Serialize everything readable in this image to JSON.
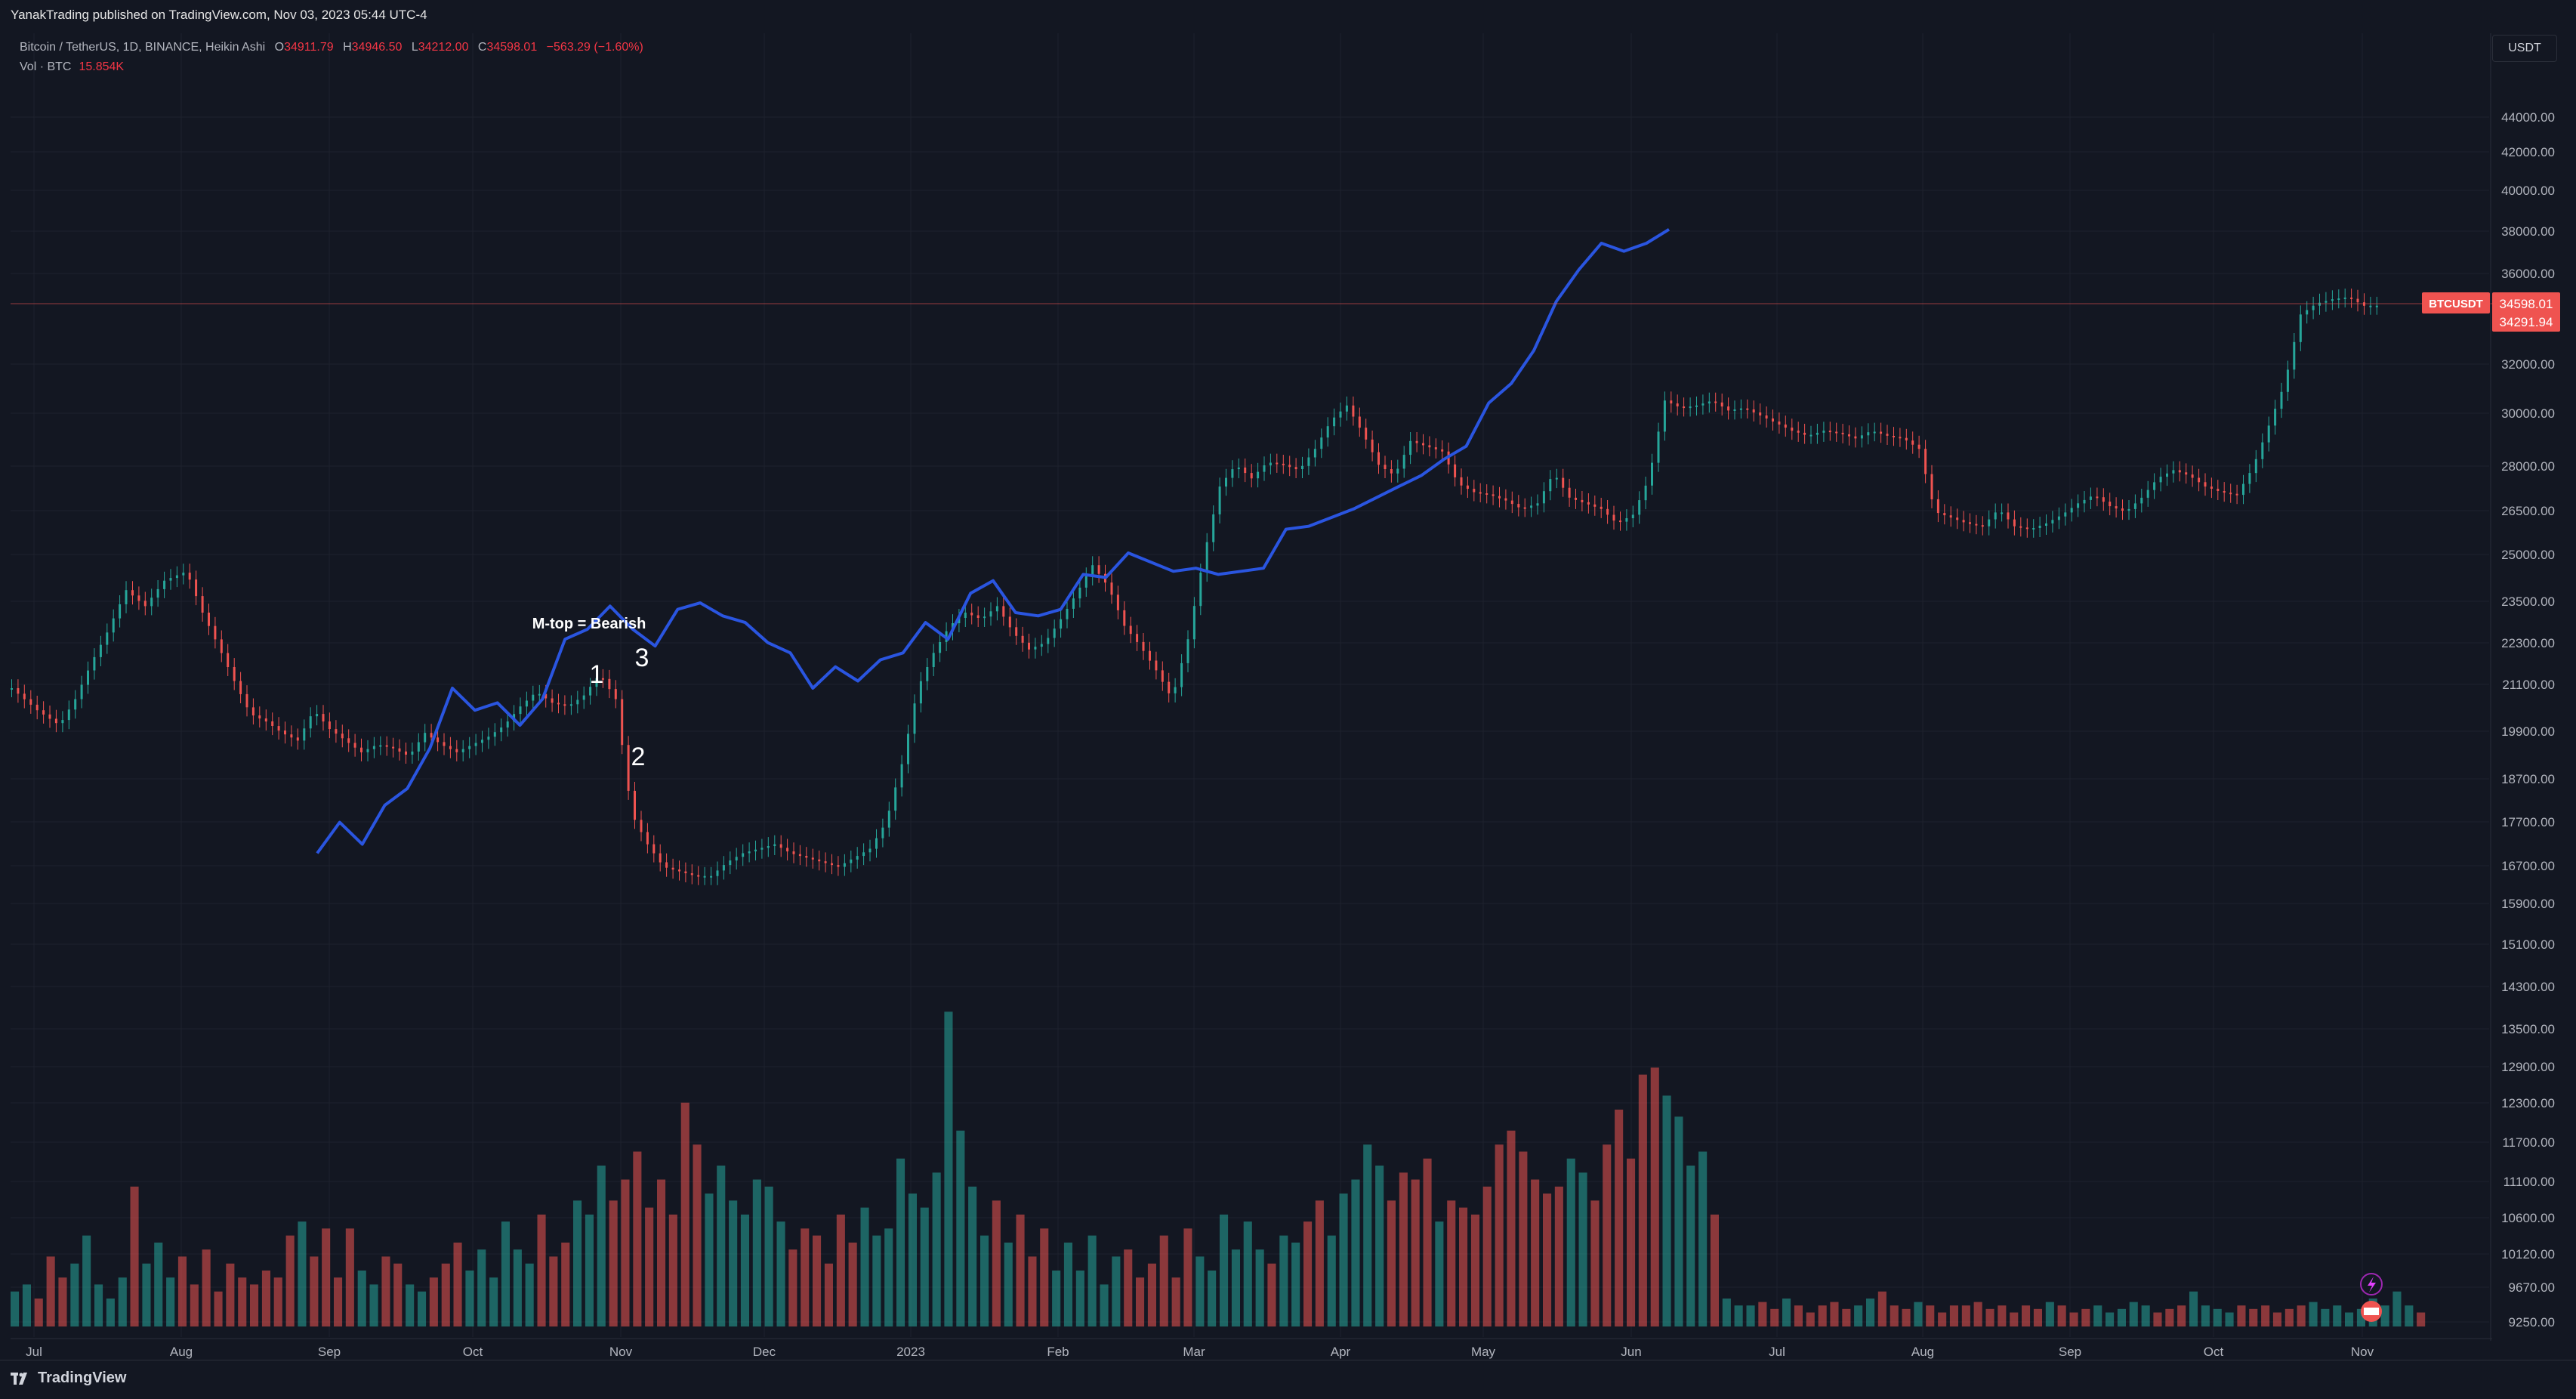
{
  "header": {
    "publisher": "YanakTrading published on TradingView.com, Nov 03, 2023 05:44 UTC-4"
  },
  "legend": {
    "symbol": "Bitcoin / TetherUS, 1D, BINANCE, Heikin Ashi",
    "o_label": "O",
    "o_value": "34911.79",
    "h_label": "H",
    "h_value": "34946.50",
    "l_label": "L",
    "l_value": "34212.00",
    "c_label": "C",
    "c_value": "34598.01",
    "change": "−563.29 (−1.60%)",
    "volume_label": "Vol · BTC",
    "volume_value": "15.854K"
  },
  "currency_button": "USDT",
  "footer": {
    "brand": "TradingView"
  },
  "colors": {
    "up": "#26a69a",
    "down": "#ef5350",
    "overlay": "#2a55e0",
    "background": "#131722",
    "price_line": "#ef5350"
  },
  "chart_data": {
    "type": "candlestick",
    "style": "Heikin Ashi",
    "symbol": "BTCUSDT",
    "timeframe": "1D",
    "x_ticks": [
      "Jul",
      "Aug",
      "Sep",
      "Oct",
      "Nov",
      "Dec",
      "2023",
      "Feb",
      "Mar",
      "Apr",
      "May",
      "Jun",
      "Jul",
      "Aug",
      "Sep",
      "Oct",
      "Nov"
    ],
    "y_ticks": [
      44000,
      42000,
      40000,
      38000,
      36000,
      32000,
      30000,
      28000,
      26500,
      25000,
      23500,
      22300,
      21100,
      19900,
      18700,
      17700,
      16700,
      15900,
      15100,
      14300,
      13500,
      12900,
      12300,
      11700,
      11100,
      10600,
      10120,
      9670,
      9250
    ],
    "y_tick_labels": [
      "44000.00",
      "42000.00",
      "40000.00",
      "38000.00",
      "36000.00",
      "32000.00",
      "30000.00",
      "28000.00",
      "26500.00",
      "25000.00",
      "23500.00",
      "22300.00",
      "21100.00",
      "19900.00",
      "18700.00",
      "17700.00",
      "16700.00",
      "15900.00",
      "15100.00",
      "14300.00",
      "13500.00",
      "12900.00",
      "12300.00",
      "11700.00",
      "11100.00",
      "10600.00",
      "10120.00",
      "9670.00",
      "9250.00"
    ],
    "y_scale": "log",
    "price_label": {
      "name": "BTCUSDT",
      "price": "34598.01",
      "secondary": "34291.94"
    },
    "series": [
      {
        "type": "candles",
        "close_path": [
          [
            0,
            20800
          ],
          [
            8,
            20200
          ],
          [
            15,
            19800
          ],
          [
            20,
            20500
          ],
          [
            25,
            21500
          ],
          [
            30,
            22400
          ],
          [
            36,
            23700
          ],
          [
            42,
            23200
          ],
          [
            48,
            24000
          ],
          [
            55,
            24300
          ],
          [
            60,
            23000
          ],
          [
            65,
            22000
          ],
          [
            70,
            21000
          ],
          [
            75,
            20100
          ],
          [
            80,
            19900
          ],
          [
            85,
            19600
          ],
          [
            90,
            19400
          ],
          [
            95,
            20200
          ],
          [
            100,
            19700
          ],
          [
            105,
            19400
          ],
          [
            110,
            19100
          ],
          [
            115,
            19300
          ],
          [
            120,
            19200
          ],
          [
            125,
            19000
          ],
          [
            130,
            19600
          ],
          [
            135,
            19300
          ],
          [
            140,
            19100
          ],
          [
            145,
            19300
          ],
          [
            150,
            19500
          ],
          [
            155,
            19800
          ],
          [
            160,
            20300
          ],
          [
            165,
            20700
          ],
          [
            170,
            20400
          ],
          [
            175,
            20300
          ],
          [
            180,
            20600
          ],
          [
            185,
            21200
          ],
          [
            190,
            20500
          ],
          [
            195,
            17600
          ],
          [
            200,
            16900
          ],
          [
            205,
            16400
          ],
          [
            210,
            16300
          ],
          [
            215,
            16200
          ],
          [
            220,
            16200
          ],
          [
            225,
            16500
          ],
          [
            230,
            16700
          ],
          [
            235,
            16800
          ],
          [
            240,
            16900
          ],
          [
            245,
            16700
          ],
          [
            250,
            16600
          ],
          [
            255,
            16500
          ],
          [
            260,
            16400
          ],
          [
            265,
            16600
          ],
          [
            270,
            16800
          ],
          [
            275,
            17400
          ],
          [
            280,
            18800
          ],
          [
            285,
            20800
          ],
          [
            290,
            21800
          ],
          [
            295,
            22600
          ],
          [
            300,
            23000
          ],
          [
            305,
            22800
          ],
          [
            310,
            23200
          ],
          [
            315,
            22400
          ],
          [
            320,
            21900
          ],
          [
            325,
            22100
          ],
          [
            330,
            22800
          ],
          [
            335,
            23600
          ],
          [
            340,
            24500
          ],
          [
            345,
            23800
          ],
          [
            350,
            22600
          ],
          [
            355,
            22000
          ],
          [
            360,
            21300
          ],
          [
            365,
            20500
          ],
          [
            370,
            22200
          ],
          [
            375,
            24800
          ],
          [
            380,
            27200
          ],
          [
            385,
            28000
          ],
          [
            390,
            27500
          ],
          [
            395,
            28100
          ],
          [
            400,
            28000
          ],
          [
            405,
            27800
          ],
          [
            410,
            28600
          ],
          [
            415,
            29700
          ],
          [
            420,
            30300
          ],
          [
            425,
            29200
          ],
          [
            430,
            28000
          ],
          [
            435,
            27600
          ],
          [
            440,
            28900
          ],
          [
            445,
            28700
          ],
          [
            450,
            28500
          ],
          [
            455,
            27300
          ],
          [
            460,
            27000
          ],
          [
            465,
            26900
          ],
          [
            470,
            26700
          ],
          [
            475,
            26400
          ],
          [
            480,
            26600
          ],
          [
            485,
            27700
          ],
          [
            490,
            26800
          ],
          [
            495,
            26600
          ],
          [
            500,
            26400
          ],
          [
            505,
            25900
          ],
          [
            510,
            26200
          ],
          [
            515,
            27500
          ],
          [
            520,
            30500
          ],
          [
            525,
            30200
          ],
          [
            530,
            30300
          ],
          [
            535,
            30500
          ],
          [
            540,
            30100
          ],
          [
            545,
            30200
          ],
          [
            550,
            29900
          ],
          [
            555,
            29600
          ],
          [
            560,
            29300
          ],
          [
            565,
            29100
          ],
          [
            570,
            29300
          ],
          [
            575,
            29200
          ],
          [
            580,
            29000
          ],
          [
            585,
            29300
          ],
          [
            590,
            29100
          ],
          [
            595,
            29000
          ],
          [
            600,
            28600
          ],
          [
            605,
            26300
          ],
          [
            610,
            26100
          ],
          [
            615,
            25900
          ],
          [
            620,
            25800
          ],
          [
            625,
            26400
          ],
          [
            630,
            25800
          ],
          [
            635,
            25700
          ],
          [
            640,
            25900
          ],
          [
            645,
            26200
          ],
          [
            650,
            26600
          ],
          [
            655,
            26900
          ],
          [
            660,
            26500
          ],
          [
            665,
            26300
          ],
          [
            670,
            26800
          ],
          [
            675,
            27500
          ],
          [
            680,
            27800
          ],
          [
            685,
            27600
          ],
          [
            690,
            27200
          ],
          [
            695,
            27000
          ],
          [
            700,
            26900
          ],
          [
            705,
            27900
          ],
          [
            710,
            29500
          ],
          [
            715,
            31200
          ],
          [
            720,
            34200
          ],
          [
            725,
            34700
          ],
          [
            730,
            34900
          ],
          [
            735,
            35000
          ],
          [
            740,
            34600
          ]
        ]
      },
      {
        "type": "overlay_line",
        "name": "",
        "path": [
          [
            0,
            16700
          ],
          [
            5,
            17400
          ],
          [
            10,
            16900
          ],
          [
            15,
            17800
          ],
          [
            20,
            18200
          ],
          [
            25,
            19200
          ],
          [
            30,
            20800
          ],
          [
            35,
            20200
          ],
          [
            40,
            20400
          ],
          [
            45,
            19800
          ],
          [
            50,
            20500
          ],
          [
            55,
            22200
          ],
          [
            60,
            22500
          ],
          [
            65,
            23200
          ],
          [
            70,
            22500
          ],
          [
            75,
            22000
          ],
          [
            80,
            23100
          ],
          [
            85,
            23300
          ],
          [
            90,
            22900
          ],
          [
            95,
            22700
          ],
          [
            100,
            22100
          ],
          [
            105,
            21800
          ],
          [
            110,
            20800
          ],
          [
            115,
            21400
          ],
          [
            120,
            21000
          ],
          [
            125,
            21600
          ],
          [
            130,
            21800
          ],
          [
            135,
            22700
          ],
          [
            140,
            22200
          ],
          [
            145,
            23600
          ],
          [
            150,
            24000
          ],
          [
            155,
            23000
          ],
          [
            160,
            22900
          ],
          [
            165,
            23100
          ],
          [
            170,
            24200
          ],
          [
            175,
            24100
          ],
          [
            180,
            24900
          ],
          [
            185,
            24600
          ],
          [
            190,
            24300
          ],
          [
            195,
            24400
          ],
          [
            200,
            24200
          ],
          [
            205,
            24300
          ],
          [
            210,
            24400
          ],
          [
            215,
            25700
          ],
          [
            220,
            25800
          ],
          [
            225,
            26100
          ],
          [
            230,
            26400
          ],
          [
            235,
            26800
          ],
          [
            240,
            27200
          ],
          [
            245,
            27600
          ],
          [
            250,
            28200
          ],
          [
            255,
            28700
          ],
          [
            260,
            30400
          ],
          [
            265,
            31200
          ],
          [
            270,
            32600
          ],
          [
            275,
            34800
          ],
          [
            280,
            36300
          ],
          [
            285,
            37600
          ],
          [
            290,
            37200
          ],
          [
            295,
            37600
          ],
          [
            300,
            38300
          ]
        ]
      },
      {
        "type": "volume",
        "values": [
          9700,
          9800,
          9600,
          10200,
          9900,
          10100,
          10500,
          9800,
          9600,
          9900,
          11200,
          10100,
          10400,
          9900,
          10200,
          9800,
          10300,
          9700,
          10100,
          9900,
          9800,
          10000,
          9900,
          10500,
          10700,
          10200,
          10600,
          9900,
          10600,
          10000,
          9800,
          10200,
          10100,
          9800,
          9700,
          9900,
          10100,
          10400,
          10000,
          10300,
          9900,
          10700,
          10300,
          10100,
          10800,
          10200,
          10400,
          11000,
          10800,
          11500,
          11000,
          11300,
          11700,
          10900,
          11300,
          10800,
          12400,
          11800,
          11100,
          11500,
          11000,
          10800,
          11300,
          11200,
          10700,
          10300,
          10600,
          10500,
          10100,
          10800,
          10400,
          10900,
          10500,
          10600,
          11600,
          11100,
          10900,
          11400,
          13700,
          12000,
          11200,
          10500,
          11000,
          10400,
          10800,
          10200,
          10600,
          10000,
          10400,
          10000,
          10500,
          9800,
          10200,
          10300,
          9900,
          10100,
          10500,
          9900,
          10600,
          10200,
          10000,
          10800,
          10300,
          10700,
          10300,
          10100,
          10500,
          10400,
          10700,
          11000,
          10500,
          11100,
          11300,
          11800,
          11500,
          11000,
          11400,
          11300,
          11600,
          10700,
          11000,
          10900,
          10800,
          11200,
          11800,
          12000,
          11700,
          11300,
          11100,
          11200,
          11600,
          11400,
          11000,
          11800,
          12300,
          11600,
          12800,
          12900,
          12500,
          12200,
          11500,
          11700,
          10800,
          9600,
          9500,
          9500,
          9550,
          9450,
          9600,
          9500,
          9400,
          9500,
          9550,
          9450,
          9500,
          9600,
          9700,
          9500,
          9450,
          9550,
          9500,
          9400,
          9500,
          9500,
          9550,
          9450,
          9500,
          9400,
          9500,
          9450,
          9550,
          9500,
          9400,
          9450,
          9500,
          9400,
          9450,
          9550,
          9500,
          9400,
          9450,
          9500,
          9700,
          9500,
          9450,
          9400,
          9500,
          9450,
          9500,
          9400,
          9450,
          9500,
          9550,
          9450,
          9500,
          9400,
          9450,
          9600,
          9500,
          9700,
          9500,
          9400
        ]
      }
    ],
    "annotations": [
      {
        "text": "M-top = Bearish"
      },
      {
        "text": "1"
      },
      {
        "text": "2"
      },
      {
        "text": "3"
      }
    ]
  }
}
